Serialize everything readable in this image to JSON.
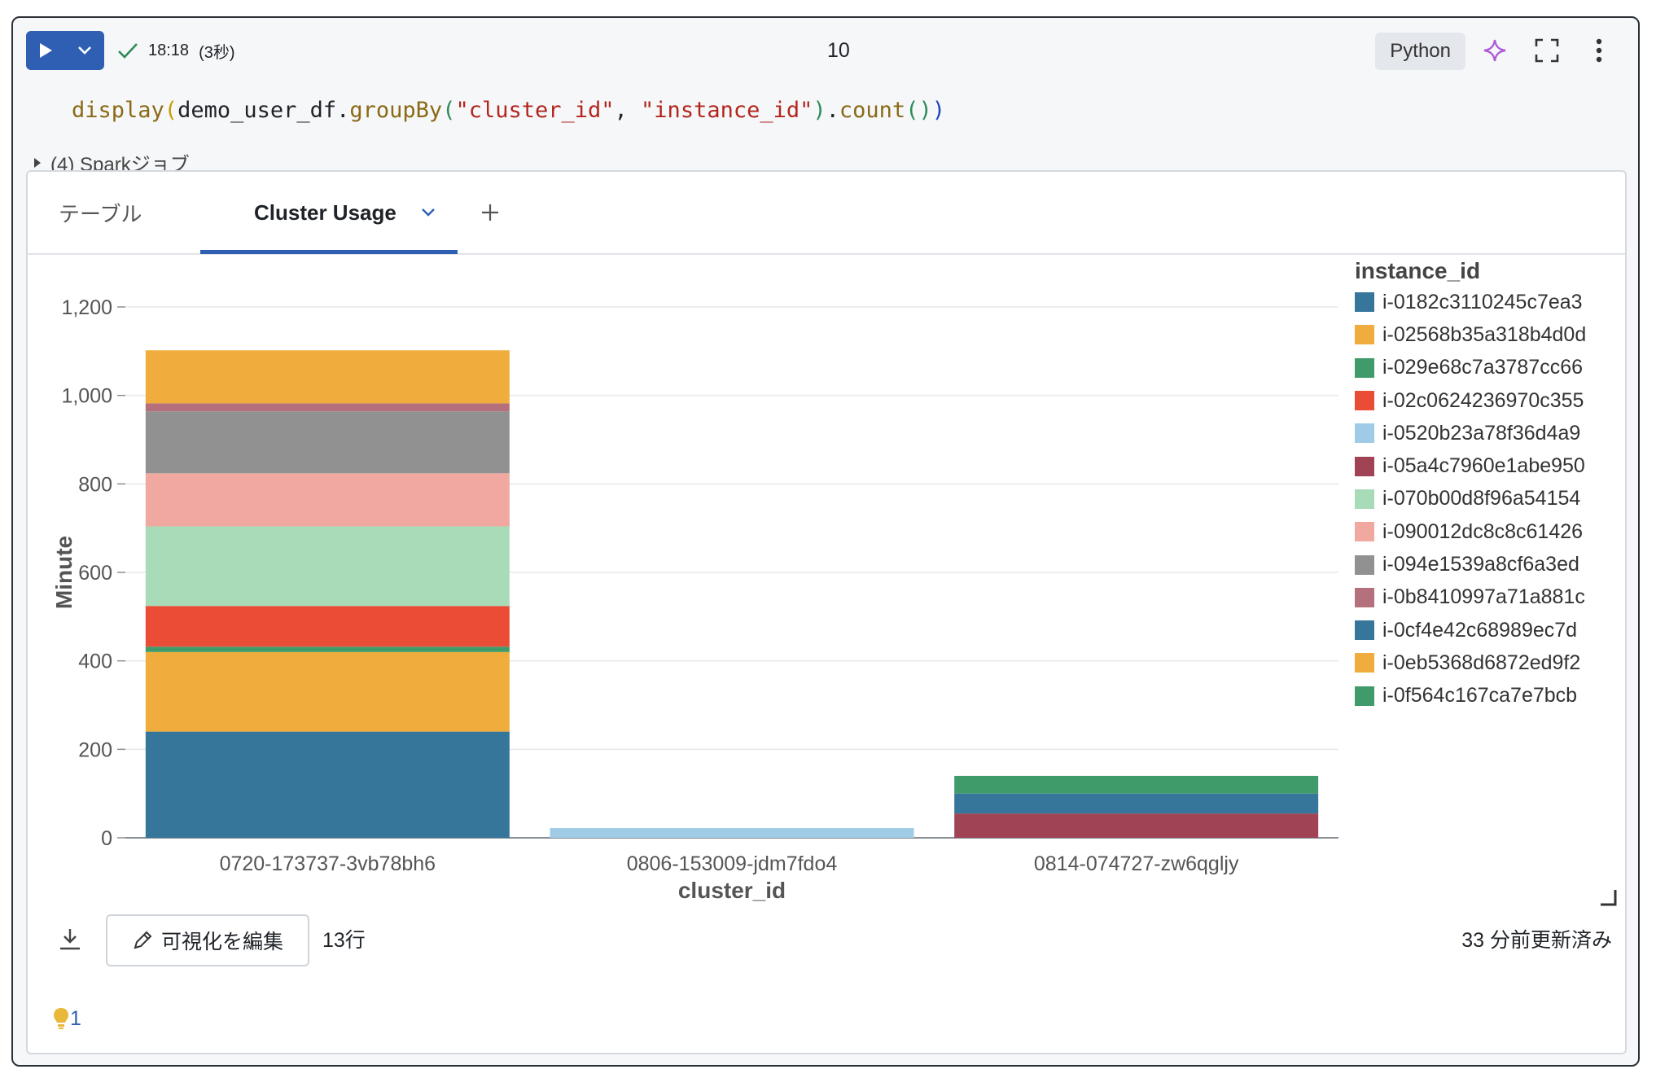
{
  "toolbar": {
    "status_time": "18:18",
    "status_duration": "(3秒)",
    "cell_number": "10",
    "language": "Python"
  },
  "code": {
    "fn": "display",
    "obj": "demo_user_df.",
    "method1": "groupBy",
    "arg1": "\"cluster_id\"",
    "sep": ", ",
    "arg2": "\"instance_id\"",
    "method2": "count",
    "dot": "."
  },
  "spark_jobs": "(4) Sparkジョブ",
  "tabs": [
    {
      "label": "テーブル"
    },
    {
      "label": "Cluster Usage"
    }
  ],
  "chart_data": {
    "type": "bar",
    "stacked": true,
    "xlabel": "cluster_id",
    "ylabel": "Minute",
    "ylim": [
      0,
      1200
    ],
    "yticks": [
      0,
      200,
      400,
      600,
      800,
      1000,
      1200
    ],
    "ytick_labels": [
      "0",
      "200",
      "400",
      "600",
      "800",
      "1,000",
      "1,200"
    ],
    "categories": [
      "0720-173737-3vb78bh6",
      "0806-153009-jdm7fdo4",
      "0814-074727-zw6qgljy"
    ],
    "legend_title": "instance_id",
    "legend_position": "right",
    "grid": true,
    "series": [
      {
        "name": "i-0182c3110245c7ea3",
        "color": "#36769b",
        "values": [
          240,
          0,
          0
        ]
      },
      {
        "name": "i-02568b35a318b4d0d",
        "color": "#f0ad3d",
        "values": [
          180,
          0,
          0
        ]
      },
      {
        "name": "i-029e68c7a3787cc66",
        "color": "#3f9b6a",
        "values": [
          12,
          0,
          0
        ]
      },
      {
        "name": "i-02c0624236970c355",
        "color": "#ea4c35",
        "values": [
          92,
          0,
          0
        ]
      },
      {
        "name": "i-0520b23a78f36d4a9",
        "color": "#9fcbe7",
        "values": [
          0,
          22,
          0
        ]
      },
      {
        "name": "i-05a4c7960e1abe950",
        "color": "#a04355",
        "values": [
          0,
          0,
          55
        ]
      },
      {
        "name": "i-070b00d8f96a54154",
        "color": "#a8dcb9",
        "values": [
          180,
          0,
          0
        ]
      },
      {
        "name": "i-090012dc8c8c61426",
        "color": "#f0a8a0",
        "values": [
          120,
          0,
          0
        ]
      },
      {
        "name": "i-094e1539a8cf6a3ed",
        "color": "#919191",
        "values": [
          140,
          0,
          0
        ]
      },
      {
        "name": "i-0b8410997a71a881c",
        "color": "#b5707d",
        "values": [
          18,
          0,
          0
        ]
      },
      {
        "name": "i-0cf4e42c68989ec7d",
        "color": "#36769b",
        "values": [
          0,
          0,
          45
        ]
      },
      {
        "name": "i-0eb5368d6872ed9f2",
        "color": "#f0ad3d",
        "values": [
          120,
          0,
          0
        ]
      },
      {
        "name": "i-0f564c167ca7e7bcb",
        "color": "#3f9b6a",
        "values": [
          0,
          0,
          40
        ]
      }
    ]
  },
  "bottom": {
    "edit_label": "可視化を編集",
    "rows_label": "13行",
    "updated_label": "33 分前更新済み"
  },
  "hint_count": "1"
}
